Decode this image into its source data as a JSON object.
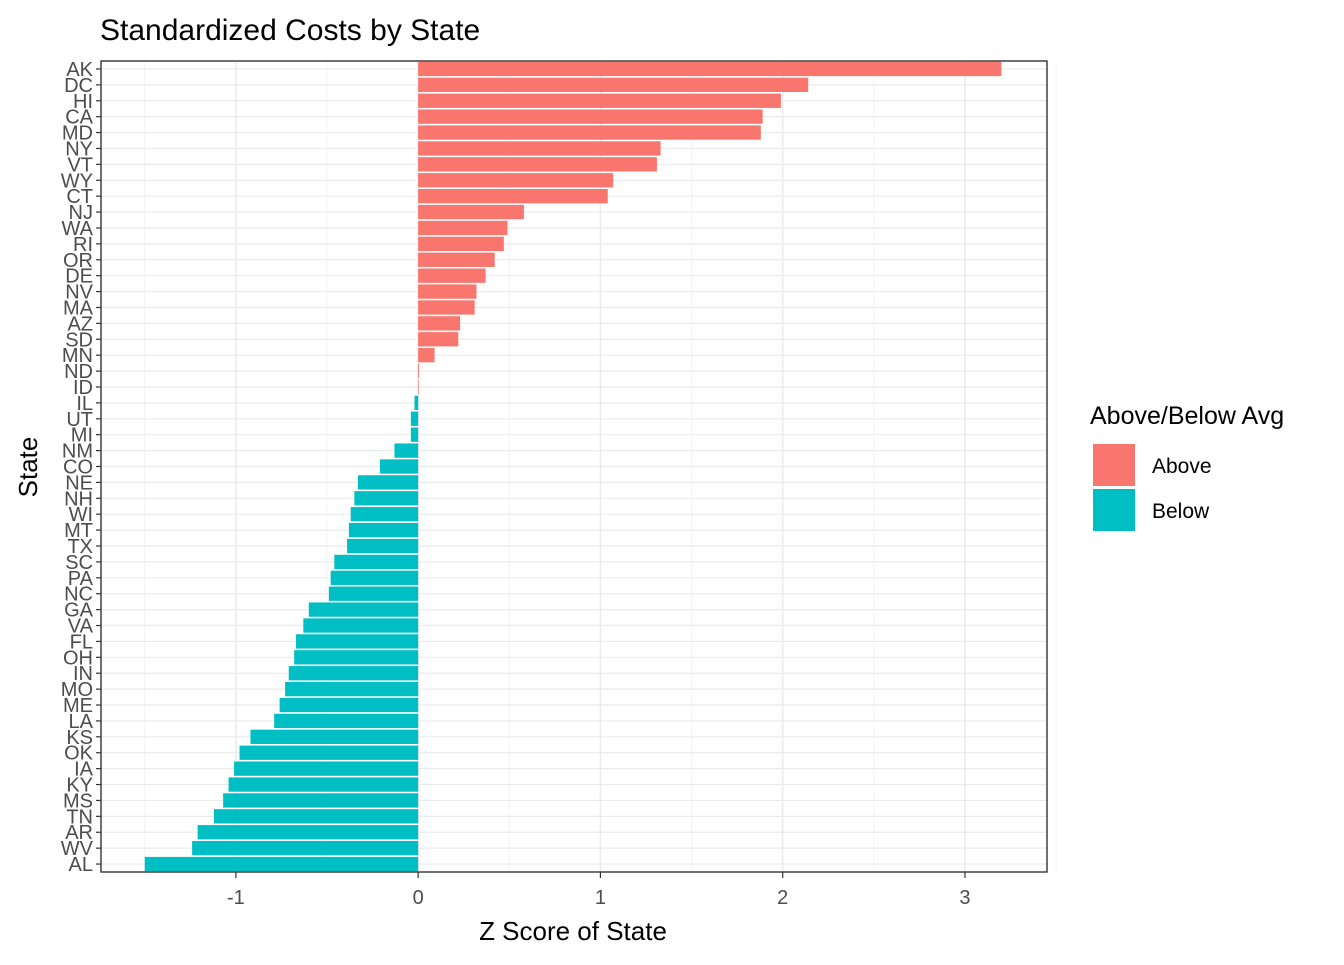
{
  "chart_data": {
    "type": "bar",
    "orientation": "horizontal",
    "title": "Standardized Costs by State",
    "xlabel": "Z Score of State",
    "ylabel": "State",
    "xlim": [
      -1.74,
      3.45
    ],
    "x_ticks": [
      -1,
      0,
      1,
      2,
      3
    ],
    "x_tick_labels": [
      "-1",
      "0",
      "1",
      "2",
      "3"
    ],
    "grid": true,
    "legend": {
      "title": "Above/Below Avg",
      "position": "right",
      "entries": [
        {
          "label": "Above",
          "color": "#F8766D"
        },
        {
          "label": "Below",
          "color": "#00BFC4"
        }
      ]
    },
    "categories": [
      "AK",
      "DC",
      "HI",
      "CA",
      "MD",
      "NY",
      "VT",
      "WY",
      "CT",
      "NJ",
      "WA",
      "RI",
      "OR",
      "DE",
      "NV",
      "MA",
      "AZ",
      "SD",
      "MN",
      "ND",
      "ID",
      "IL",
      "UT",
      "MI",
      "NM",
      "CO",
      "NE",
      "NH",
      "WI",
      "MT",
      "TX",
      "SC",
      "PA",
      "NC",
      "GA",
      "VA",
      "FL",
      "OH",
      "IN",
      "MO",
      "ME",
      "LA",
      "KS",
      "OK",
      "IA",
      "KY",
      "MS",
      "TN",
      "AR",
      "WV",
      "AL"
    ],
    "values": [
      3.2,
      2.14,
      1.99,
      1.89,
      1.88,
      1.33,
      1.31,
      1.07,
      1.04,
      0.58,
      0.49,
      0.47,
      0.42,
      0.37,
      0.32,
      0.31,
      0.23,
      0.22,
      0.09,
      0.005,
      0.002,
      -0.02,
      -0.04,
      -0.04,
      -0.13,
      -0.21,
      -0.33,
      -0.35,
      -0.37,
      -0.38,
      -0.39,
      -0.46,
      -0.48,
      -0.49,
      -0.6,
      -0.63,
      -0.67,
      -0.68,
      -0.71,
      -0.73,
      -0.76,
      -0.79,
      -0.92,
      -0.98,
      -1.01,
      -1.04,
      -1.07,
      -1.12,
      -1.21,
      -1.24,
      -1.5
    ],
    "groups": [
      "Above",
      "Above",
      "Above",
      "Above",
      "Above",
      "Above",
      "Above",
      "Above",
      "Above",
      "Above",
      "Above",
      "Above",
      "Above",
      "Above",
      "Above",
      "Above",
      "Above",
      "Above",
      "Above",
      "Above",
      "Above",
      "Below",
      "Below",
      "Below",
      "Below",
      "Below",
      "Below",
      "Below",
      "Below",
      "Below",
      "Below",
      "Below",
      "Below",
      "Below",
      "Below",
      "Below",
      "Below",
      "Below",
      "Below",
      "Below",
      "Below",
      "Below",
      "Below",
      "Below",
      "Below",
      "Below",
      "Below",
      "Below",
      "Below",
      "Below",
      "Below"
    ]
  }
}
